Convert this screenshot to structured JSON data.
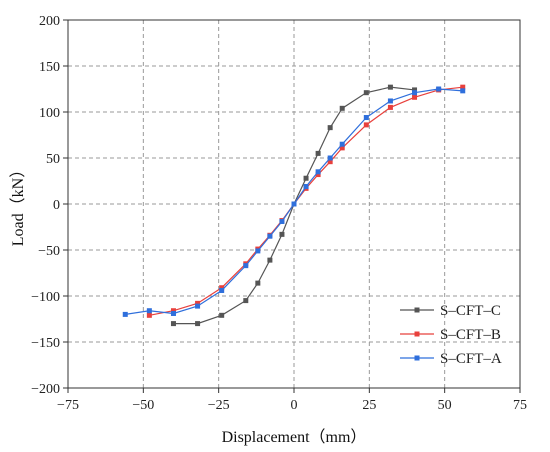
{
  "chart_data": {
    "type": "line",
    "title": "",
    "xlabel": "Displacement（mm）",
    "ylabel": "Load（kN）",
    "xlim": [
      -75,
      75
    ],
    "ylim": [
      -200,
      200
    ],
    "xticks": [
      -75,
      -50,
      -25,
      0,
      25,
      50,
      75
    ],
    "yticks": [
      -200,
      -150,
      -100,
      -50,
      0,
      50,
      100,
      150,
      200
    ],
    "grid": "dashed",
    "legend_position": "bottom-right",
    "series": [
      {
        "name": "S–CFT–C",
        "color": "#555555",
        "points": [
          [
            -40,
            -130
          ],
          [
            -32,
            -130
          ],
          [
            -24,
            -121
          ],
          [
            -16,
            -105
          ],
          [
            -12,
            -86
          ],
          [
            -8,
            -61
          ],
          [
            -4,
            -33
          ],
          [
            0,
            0
          ],
          [
            4,
            28
          ],
          [
            8,
            55
          ],
          [
            12,
            83
          ],
          [
            16,
            104
          ],
          [
            24,
            121
          ],
          [
            32,
            127
          ],
          [
            40,
            124
          ]
        ]
      },
      {
        "name": "S–CFT–B",
        "color": "#e8403c",
        "points": [
          [
            -48,
            -121
          ],
          [
            -40,
            -116
          ],
          [
            -32,
            -108
          ],
          [
            -24,
            -91
          ],
          [
            -16,
            -65
          ],
          [
            -12,
            -49
          ],
          [
            -8,
            -34
          ],
          [
            -4,
            -18
          ],
          [
            0,
            0
          ],
          [
            4,
            17
          ],
          [
            8,
            32
          ],
          [
            12,
            46
          ],
          [
            16,
            61
          ],
          [
            24,
            86
          ],
          [
            32,
            105
          ],
          [
            40,
            116
          ],
          [
            48,
            124
          ],
          [
            56,
            127
          ]
        ]
      },
      {
        "name": "S–CFT–A",
        "color": "#2f6fdc",
        "points": [
          [
            -56,
            -120
          ],
          [
            -48,
            -116
          ],
          [
            -40,
            -119
          ],
          [
            -32,
            -111
          ],
          [
            -24,
            -94
          ],
          [
            -16,
            -67
          ],
          [
            -12,
            -51
          ],
          [
            -8,
            -35
          ],
          [
            -4,
            -19
          ],
          [
            0,
            0
          ],
          [
            4,
            19
          ],
          [
            8,
            35
          ],
          [
            12,
            50
          ],
          [
            16,
            65
          ],
          [
            24,
            94
          ],
          [
            32,
            112
          ],
          [
            40,
            121
          ],
          [
            48,
            125
          ],
          [
            56,
            123
          ]
        ]
      }
    ]
  }
}
